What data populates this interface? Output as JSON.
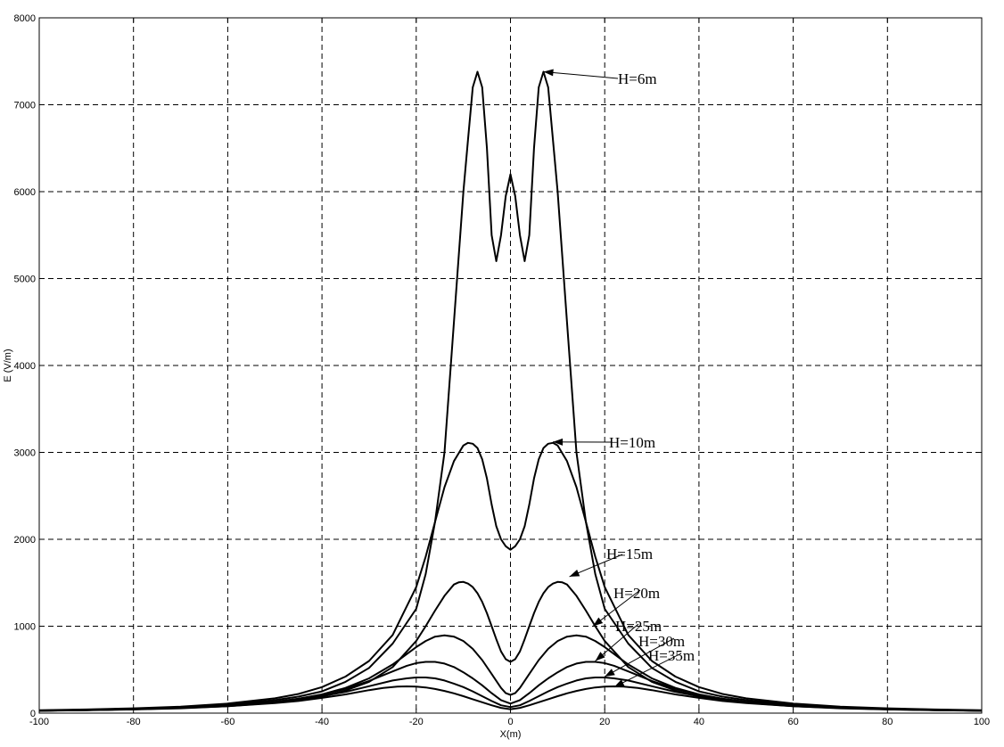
{
  "chart_data": {
    "type": "line",
    "xlabel": "X(m)",
    "ylabel": "E (V/m)",
    "xlim": [
      -100,
      100
    ],
    "ylim": [
      0,
      8000
    ],
    "xticks": [
      -100,
      -80,
      -60,
      -40,
      -20,
      0,
      20,
      40,
      60,
      80,
      100
    ],
    "yticks": [
      0,
      1000,
      2000,
      3000,
      4000,
      5000,
      6000,
      7000,
      8000
    ],
    "grid": true,
    "line_color": "#000000",
    "series": [
      {
        "name": "H=6m",
        "x": [
          0,
          1,
          2,
          3,
          4,
          5,
          6,
          7,
          8,
          9,
          10,
          12,
          14,
          16,
          18,
          20,
          25,
          30,
          35,
          40,
          45,
          50,
          60,
          70,
          80,
          90,
          100
        ],
        "y": [
          6200,
          5950,
          5500,
          5200,
          5500,
          6500,
          7200,
          7380,
          7200,
          6600,
          6000,
          4500,
          3000,
          2200,
          1600,
          1200,
          800,
          520,
          360,
          250,
          190,
          150,
          100,
          70,
          50,
          40,
          30
        ]
      },
      {
        "name": "H=10m",
        "x": [
          0,
          1,
          2,
          3,
          4,
          5,
          6,
          7,
          8,
          9,
          10,
          12,
          14,
          16,
          18,
          20,
          25,
          30,
          35,
          40,
          45,
          50,
          60,
          70,
          80,
          90,
          100
        ],
        "y": [
          1880,
          1920,
          2000,
          2150,
          2400,
          2700,
          2920,
          3050,
          3100,
          3110,
          3080,
          2900,
          2600,
          2200,
          1800,
          1450,
          900,
          600,
          420,
          300,
          220,
          170,
          110,
          75,
          55,
          42,
          33
        ]
      },
      {
        "name": "H=15m",
        "x": [
          0,
          1,
          2,
          3,
          4,
          5,
          6,
          7,
          8,
          9,
          10,
          11,
          12,
          14,
          16,
          18,
          20,
          25,
          30,
          35,
          40,
          45,
          50,
          60,
          70,
          80,
          90,
          100
        ],
        "y": [
          590,
          620,
          710,
          850,
          1000,
          1150,
          1280,
          1380,
          1450,
          1490,
          1510,
          1505,
          1480,
          1350,
          1180,
          1000,
          830,
          530,
          360,
          260,
          190,
          150,
          120,
          80,
          55,
          42,
          33,
          27
        ]
      },
      {
        "name": "H=20m",
        "x": [
          0,
          1,
          2,
          4,
          6,
          8,
          10,
          12,
          14,
          16,
          18,
          20,
          25,
          30,
          35,
          40,
          45,
          50,
          60,
          70,
          80,
          90,
          100
        ],
        "y": [
          210,
          230,
          290,
          450,
          610,
          740,
          830,
          880,
          895,
          880,
          830,
          760,
          560,
          400,
          290,
          215,
          165,
          130,
          85,
          60,
          45,
          35,
          28
        ]
      },
      {
        "name": "H=25m",
        "x": [
          0,
          2,
          4,
          6,
          8,
          10,
          12,
          14,
          16,
          18,
          20,
          22,
          25,
          30,
          35,
          40,
          45,
          50,
          60,
          70,
          80,
          90,
          100
        ],
        "y": [
          110,
          150,
          230,
          320,
          400,
          470,
          530,
          570,
          590,
          590,
          575,
          545,
          480,
          370,
          280,
          210,
          165,
          130,
          88,
          62,
          46,
          36,
          29
        ]
      },
      {
        "name": "H=30m",
        "x": [
          0,
          2,
          4,
          6,
          8,
          10,
          12,
          14,
          16,
          18,
          20,
          22,
          25,
          30,
          35,
          40,
          45,
          50,
          60,
          70,
          80,
          90,
          100
        ],
        "y": [
          70,
          90,
          140,
          195,
          250,
          300,
          340,
          375,
          400,
          410,
          410,
          400,
          375,
          310,
          245,
          195,
          155,
          125,
          85,
          60,
          45,
          35,
          28
        ]
      },
      {
        "name": "H=35m",
        "x": [
          0,
          2,
          4,
          6,
          8,
          10,
          12,
          14,
          16,
          18,
          20,
          22,
          24,
          27,
          30,
          35,
          40,
          45,
          50,
          60,
          70,
          80,
          90,
          100
        ],
        "y": [
          45,
          60,
          90,
          125,
          160,
          195,
          228,
          255,
          278,
          295,
          305,
          308,
          305,
          290,
          265,
          215,
          175,
          140,
          115,
          80,
          58,
          44,
          35,
          28
        ]
      }
    ],
    "annotations": [
      {
        "text": "H=6m",
        "x": 7,
        "y": 7380
      },
      {
        "text": "H=10m",
        "x": 9,
        "y": 3120
      },
      {
        "text": "H=15m",
        "x": 12.5,
        "y": 1570
      },
      {
        "text": "H=20m",
        "x": 17.5,
        "y": 1000
      },
      {
        "text": "H=25m",
        "x": 18,
        "y": 600
      },
      {
        "text": "H=30m",
        "x": 20,
        "y": 420
      },
      {
        "text": "H=35m",
        "x": 22,
        "y": 300
      }
    ]
  }
}
